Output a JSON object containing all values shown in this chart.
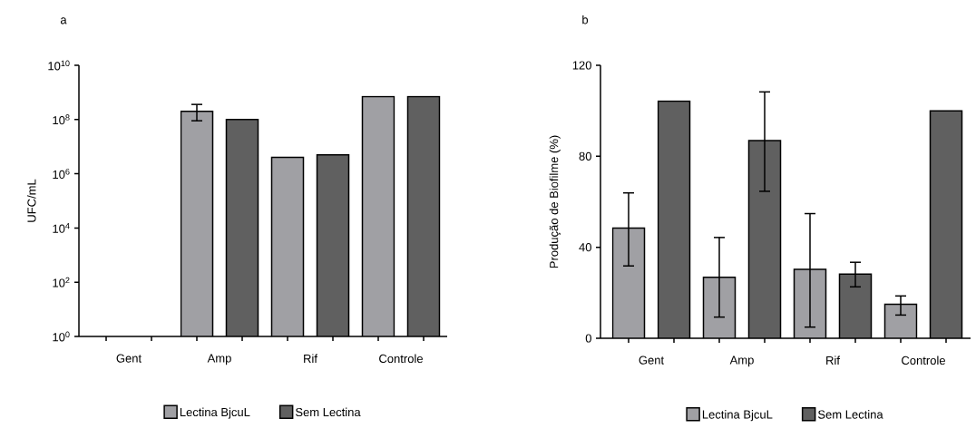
{
  "chart_data": [
    {
      "type": "bar",
      "title": "a",
      "ylabel": "UFC/mL",
      "categories": [
        "Gent",
        "Amp",
        "Rif",
        "Controle"
      ],
      "log": "y",
      "ylim": [
        1,
        10000000000
      ],
      "yticks": [
        {
          "value": 1,
          "label": "10$^{0}$"
        },
        {
          "value": 100,
          "label": "10$^{2}$"
        },
        {
          "value": 10000,
          "label": "10$^{4}$"
        },
        {
          "value": 1000000,
          "label": "10$^{6}$"
        },
        {
          "value": 100000000,
          "label": "10$^{8}$"
        },
        {
          "value": 10000000000,
          "label": "10$^{10}$"
        }
      ],
      "series": [
        {
          "name": "Lectina BjcuL",
          "color": "#a0a0a4",
          "values": [
            null,
            200000000,
            4000000,
            700000000
          ],
          "errors": [
            null,
            [
              90000000,
              360000000
            ],
            null,
            null
          ]
        },
        {
          "name": "Sem Lectina",
          "color": "#606060",
          "values": [
            null,
            100000000,
            5000000,
            700000000
          ]
        }
      ],
      "legend": "bottom"
    },
    {
      "type": "bar",
      "title": "b",
      "ylabel": "Produção de Biofilme (%)",
      "categories": [
        "Gent",
        "Amp",
        "Rif",
        "Controle"
      ],
      "ylim": [
        0,
        120
      ],
      "yticks": [
        0,
        40,
        80,
        120
      ],
      "series": [
        {
          "name": "Lectina BjcuL",
          "color": "#a0a0a4",
          "values": [
            48.4,
            26.8,
            30.3,
            14.9
          ],
          "errors": [
            [
              31.8,
              63.9
            ],
            [
              9.3,
              44.3
            ],
            [
              4.9,
              54.8
            ],
            [
              10.2,
              18.6
            ]
          ]
        },
        {
          "name": "Sem Lectina",
          "color": "#606060",
          "values": [
            104.2,
            86.9,
            28.2,
            100
          ],
          "errors": [
            null,
            [
              64.6,
              108.3
            ],
            [
              22.6,
              33.4
            ],
            null
          ]
        }
      ],
      "legend": "bottom"
    }
  ]
}
